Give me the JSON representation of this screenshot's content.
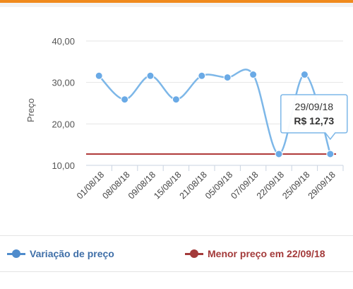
{
  "chart_data": {
    "type": "line",
    "ylabel": "Preço",
    "ylim": [
      10,
      40
    ],
    "yticks": [
      "10,00",
      "20,00",
      "30,00",
      "40,00"
    ],
    "categories": [
      "01/08/18",
      "08/08/18",
      "09/08/18",
      "15/08/18",
      "21/08/18",
      "05/09/18",
      "07/09/18",
      "22/09/18",
      "25/09/18",
      "29/09/18"
    ],
    "series": [
      {
        "name": "Variação de preço",
        "color": "#7db7e8",
        "marker_color": "#6aaae6",
        "values": [
          31.6,
          25.9,
          31.6,
          25.9,
          31.6,
          31.2,
          31.9,
          12.73,
          31.9,
          12.73
        ]
      },
      {
        "name": "Menor preço em 22/09/18",
        "color": "#b03a3a",
        "type": "hline",
        "value": 12.73
      }
    ],
    "tooltip": {
      "date": "29/09/18",
      "price": "R$ 12,73",
      "index": 9
    },
    "grid": true,
    "legend": "bottom"
  }
}
